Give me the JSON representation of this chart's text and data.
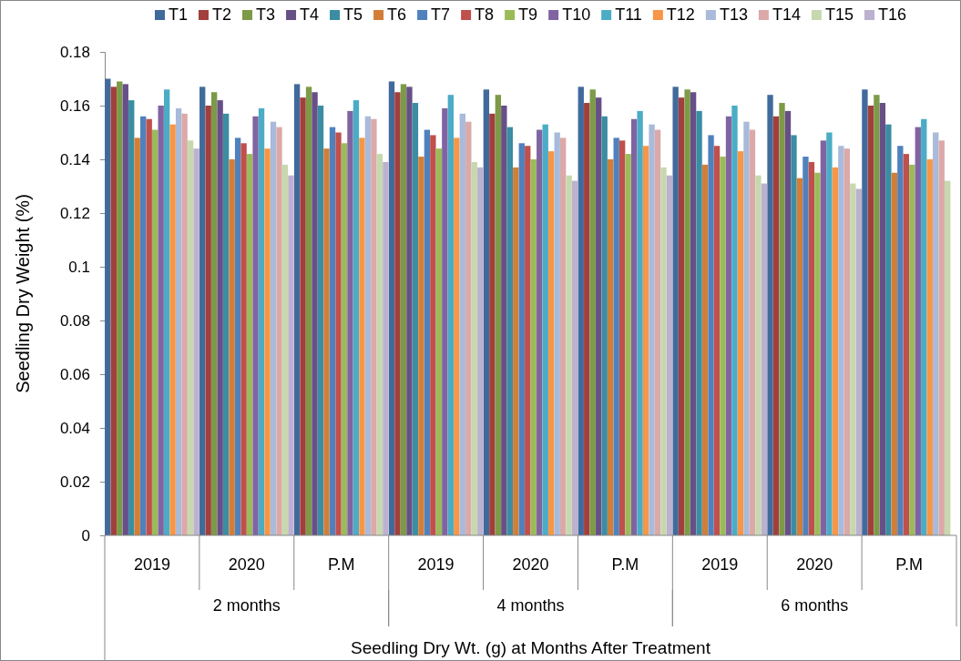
{
  "chart_data": {
    "type": "bar",
    "ylabel": "Seedling Dry Weight (%)",
    "xlabel": "Seedling Dry Wt. (g) at Months After Treatment",
    "categories": [
      "2019",
      "2020",
      "P.M",
      "2019",
      "2020",
      "P.M",
      "2019",
      "2020",
      "P.M"
    ],
    "annotations": [
      "2 months",
      "4 months",
      "6 months"
    ],
    "ylim": [
      0,
      0.18
    ],
    "yticks": [
      0,
      {
        "value": 0.02,
        "label": "0.02"
      },
      {
        "value": 0.04,
        "label": "0.04"
      },
      {
        "value": 0.06,
        "label": "0.06"
      },
      {
        "value": 0.08,
        "label": "0.08"
      },
      {
        "value": 0.1,
        "label": "0.1"
      },
      {
        "value": 0.12,
        "label": "0.12"
      },
      {
        "value": 0.14,
        "label": "0.14"
      },
      {
        "value": 0.16,
        "label": "0.16"
      },
      {
        "value": 0.18,
        "label": "0.18"
      }
    ],
    "grid": false,
    "legend": "top",
    "series": [
      {
        "name": "T1",
        "color": "#416a9c",
        "values": [
          0.17,
          0.167,
          0.168,
          0.169,
          0.166,
          0.167,
          0.167,
          0.164,
          0.166
        ]
      },
      {
        "name": "T2",
        "color": "#a23f3c",
        "values": [
          0.167,
          0.16,
          0.163,
          0.165,
          0.157,
          0.161,
          0.163,
          0.156,
          0.16
        ]
      },
      {
        "name": "T3",
        "color": "#7d9a47",
        "values": [
          0.169,
          0.165,
          0.167,
          0.168,
          0.164,
          0.166,
          0.166,
          0.161,
          0.164
        ]
      },
      {
        "name": "T4",
        "color": "#674f87",
        "values": [
          0.168,
          0.162,
          0.165,
          0.167,
          0.16,
          0.163,
          0.165,
          0.158,
          0.161
        ]
      },
      {
        "name": "T5",
        "color": "#3a8da2",
        "values": [
          0.162,
          0.157,
          0.16,
          0.161,
          0.152,
          0.156,
          0.158,
          0.149,
          0.153
        ]
      },
      {
        "name": "T6",
        "color": "#d27e37",
        "values": [
          0.148,
          0.14,
          0.144,
          0.141,
          0.137,
          0.14,
          0.138,
          0.133,
          0.135
        ]
      },
      {
        "name": "T7",
        "color": "#4f81bd",
        "values": [
          0.156,
          0.148,
          0.152,
          0.151,
          0.146,
          0.148,
          0.149,
          0.141,
          0.145
        ]
      },
      {
        "name": "T8",
        "color": "#c0504d",
        "values": [
          0.155,
          0.146,
          0.15,
          0.149,
          0.145,
          0.147,
          0.145,
          0.139,
          0.142
        ]
      },
      {
        "name": "T9",
        "color": "#9bbb59",
        "values": [
          0.151,
          0.142,
          0.146,
          0.144,
          0.14,
          0.142,
          0.141,
          0.135,
          0.138
        ]
      },
      {
        "name": "T10",
        "color": "#8064a2",
        "values": [
          0.16,
          0.156,
          0.158,
          0.159,
          0.151,
          0.155,
          0.156,
          0.147,
          0.152
        ]
      },
      {
        "name": "T11",
        "color": "#4bacc6",
        "values": [
          0.166,
          0.159,
          0.162,
          0.164,
          0.153,
          0.158,
          0.16,
          0.15,
          0.155
        ]
      },
      {
        "name": "T12",
        "color": "#f79646",
        "values": [
          0.153,
          0.144,
          0.148,
          0.148,
          0.143,
          0.145,
          0.143,
          0.137,
          0.14
        ]
      },
      {
        "name": "T13",
        "color": "#a9bada",
        "values": [
          0.159,
          0.154,
          0.156,
          0.157,
          0.15,
          0.153,
          0.154,
          0.145,
          0.15
        ]
      },
      {
        "name": "T14",
        "color": "#dba9a8",
        "values": [
          0.157,
          0.152,
          0.155,
          0.154,
          0.148,
          0.151,
          0.151,
          0.144,
          0.147
        ]
      },
      {
        "name": "T15",
        "color": "#c7d8ae",
        "values": [
          0.147,
          0.138,
          0.142,
          0.139,
          0.134,
          0.137,
          0.134,
          0.131,
          0.132
        ]
      },
      {
        "name": "T16",
        "color": "#bcb1ce",
        "values": [
          0.144,
          0.134,
          0.139,
          0.137,
          0.132,
          0.134,
          0.131,
          0.129,
          null
        ]
      }
    ]
  }
}
